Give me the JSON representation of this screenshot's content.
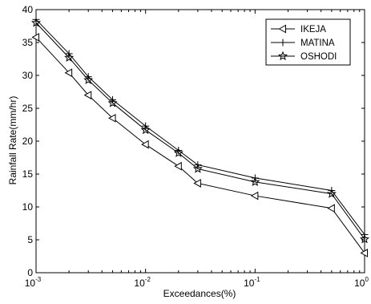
{
  "chart_data": {
    "type": "line",
    "xscale": "log",
    "xlabel": "Exceedances(%)",
    "ylabel": "Rainfall Rate(mm/hr)",
    "xlim": [
      0.001,
      1
    ],
    "ylim": [
      0,
      40
    ],
    "grid": false,
    "legend_position": "top-right",
    "xticks": [
      {
        "value": 0.001,
        "base": "10",
        "exp": "-3"
      },
      {
        "value": 0.01,
        "base": "10",
        "exp": "-2"
      },
      {
        "value": 0.1,
        "base": "10",
        "exp": "-1"
      },
      {
        "value": 1,
        "base": "10",
        "exp": "0"
      }
    ],
    "yticks": [
      0,
      5,
      10,
      15,
      20,
      25,
      30,
      35,
      40
    ],
    "x": [
      0.001,
      0.002,
      0.003,
      0.005,
      0.01,
      0.02,
      0.03,
      0.1,
      0.5,
      1
    ],
    "series": [
      {
        "name": "IKEJA",
        "marker": "triangle-left",
        "values": [
          35.8,
          30.4,
          27.0,
          23.5,
          19.5,
          16.2,
          13.6,
          11.7,
          9.8,
          3.0
        ]
      },
      {
        "name": "MATINA",
        "marker": "plus",
        "values": [
          38.5,
          33.3,
          29.8,
          26.3,
          22.3,
          18.6,
          16.4,
          14.4,
          12.5,
          5.8
        ]
      },
      {
        "name": "OSHODI",
        "marker": "star",
        "values": [
          38.0,
          32.7,
          29.3,
          25.8,
          21.7,
          18.2,
          15.8,
          13.8,
          12.0,
          5.1
        ]
      }
    ]
  }
}
